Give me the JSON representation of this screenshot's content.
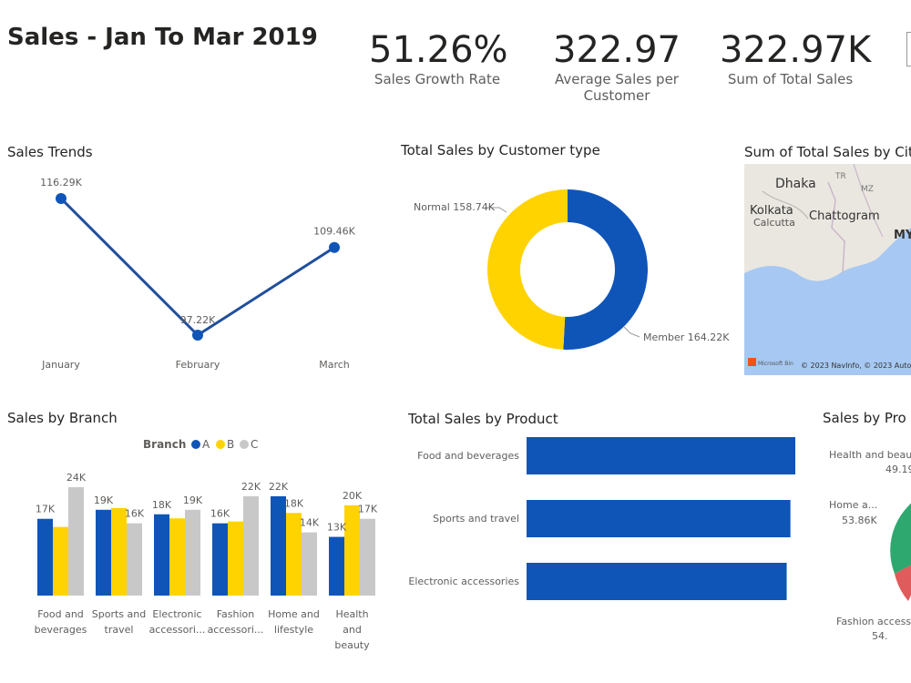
{
  "header": {
    "title": "Sales - Jan To Mar 2019"
  },
  "kpis": [
    {
      "value": "51.26%",
      "label": "Sales Growth Rate"
    },
    {
      "value": "322.97",
      "label": "Average Sales per Customer"
    },
    {
      "value": "322.97K",
      "label": "Sum of Total Sales"
    }
  ],
  "colors": {
    "blue": "#0f55b8",
    "yellow": "#ffd300",
    "gray": "#c8c8c8",
    "green": "#2ea86f",
    "red": "#e05b5b"
  },
  "panels": {
    "trends": "Sales Trends",
    "customer": "Total Sales by Customer type",
    "city": "Sum of Total Sales by Cit",
    "branch": "Sales by Branch",
    "product": "Total Sales by Product",
    "product_pie": "Sales by Pro"
  },
  "map": {
    "labels": [
      "Dhaka",
      "Kolkata",
      "Calcutta",
      "Chattogram",
      "TR",
      "MZ",
      "MY"
    ],
    "attribution": "© 2023 NavInfo, © 2023 Autoli",
    "brand": "Microsoft Bin"
  },
  "chart_data": [
    {
      "type": "line",
      "categories": [
        "January",
        "February",
        "March"
      ],
      "values": [
        116.29,
        97.22,
        109.46
      ],
      "data_labels": [
        "116.29K",
        "97.22K",
        "109.46K"
      ],
      "title": "Sales Trends"
    },
    {
      "type": "pie",
      "donut": true,
      "labels": [
        "Normal",
        "Member"
      ],
      "values": [
        158.74,
        164.22
      ],
      "data_labels": [
        "Normal 158.74K",
        "Member 164.22K"
      ],
      "title": "Total Sales by Customer type"
    },
    {
      "type": "bar",
      "title": "Sales by Branch",
      "legend_title": "Branch",
      "categories": [
        [
          "Food and",
          "beverages"
        ],
        [
          "Sports and",
          "travel"
        ],
        [
          "Electronic",
          "accessori..."
        ],
        [
          "Fashion",
          "accessori..."
        ],
        [
          "Home and",
          "lifestyle"
        ],
        [
          "Health",
          "and",
          "beauty"
        ]
      ],
      "series": [
        {
          "name": "A",
          "values": [
            17,
            19,
            18,
            16,
            22,
            13
          ],
          "labels": [
            "17K",
            "19K",
            "18K",
            "16K",
            "22K",
            "13K"
          ]
        },
        {
          "name": "B",
          "values": [
            15.2,
            19.4,
            17.1,
            16.4,
            18.3,
            20
          ],
          "labels": [
            "",
            "",
            "",
            "",
            "18K",
            "20K"
          ]
        },
        {
          "name": "C",
          "values": [
            24,
            16,
            19,
            22,
            14,
            17
          ],
          "labels": [
            "24K",
            "16K",
            "19K",
            "22K",
            "14K",
            "17K"
          ]
        }
      ],
      "ylim": [
        0,
        25
      ]
    },
    {
      "type": "bar",
      "orientation": "horizontal",
      "title": "Total Sales by Product",
      "categories": [
        "Food and beverages",
        "Sports and travel",
        "Electronic accessories"
      ],
      "values": [
        56.14,
        55.12,
        54.34
      ]
    },
    {
      "type": "pie",
      "title": "Sales by Pro",
      "labels": [
        "Health and beaut",
        "Home a...",
        "Fashion accesso"
      ],
      "data_labels": [
        "49.19",
        "53.86K",
        "54."
      ]
    }
  ]
}
